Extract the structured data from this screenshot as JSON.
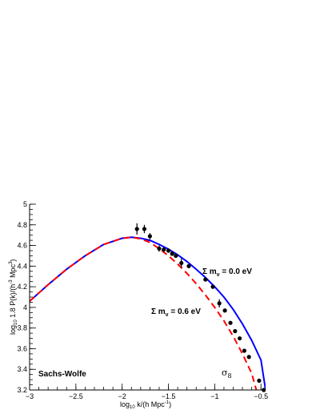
{
  "chart_data": {
    "type": "line",
    "title": "",
    "xlabel": "log10 k/(h Mpc^-1)",
    "ylabel": "log10 1.8 P(k)/(h^-3 Mpc^3)",
    "xlabel_parts": {
      "pre": "log",
      "sub": "10",
      "mid": " k/(h Mpc",
      "sup": "-1",
      "post": ")"
    },
    "ylabel_parts": {
      "pre": "log",
      "sub": "10",
      "mid": " 1.8 P(k)/(h",
      "sup1": "-3",
      "mid2": " Mpc",
      "sup2": "3",
      "post": ")"
    },
    "xlim": [
      -3,
      -0.45
    ],
    "ylim": [
      3.2,
      5.0
    ],
    "xticks": [
      -3,
      -2.5,
      -2,
      -1.5,
      -1,
      -0.5
    ],
    "xtick_labels": [
      "−3",
      "−2.5",
      "−2",
      "−1.5",
      "−1",
      "−0.5"
    ],
    "yticks": [
      3.2,
      3.4,
      3.6,
      3.8,
      4.0,
      4.2,
      4.4,
      4.6,
      4.8,
      5.0
    ],
    "ytick_labels": [
      "3.2",
      "3.4",
      "3.6",
      "3.8",
      "4",
      "4.2",
      "4.4",
      "4.6",
      "4.8",
      "5"
    ],
    "grid": false,
    "series": [
      {
        "style": "solid",
        "color": "#0000ff",
        "x": [
          -3.0,
          -2.8,
          -2.6,
          -2.4,
          -2.2,
          -2.0,
          -1.9,
          -1.8,
          -1.7,
          -1.6,
          -1.5,
          -1.4,
          -1.3,
          -1.2,
          -1.1,
          -1.0,
          -0.9,
          -0.8,
          -0.7,
          -0.6,
          -0.5,
          -0.45
        ],
        "y": [
          4.06,
          4.22,
          4.37,
          4.5,
          4.61,
          4.67,
          4.68,
          4.67,
          4.65,
          4.61,
          4.565,
          4.51,
          4.445,
          4.37,
          4.29,
          4.2,
          4.1,
          3.98,
          3.84,
          3.68,
          3.49,
          3.2
        ]
      },
      {
        "style": "dashed",
        "color": "#ff0000",
        "x": [
          -3.0,
          -2.8,
          -2.6,
          -2.4,
          -2.2,
          -2.0,
          -1.9,
          -1.8,
          -1.7,
          -1.6,
          -1.5,
          -1.4,
          -1.3,
          -1.2,
          -1.1,
          -1.0,
          -0.9,
          -0.8,
          -0.7,
          -0.6,
          -0.55
        ],
        "y": [
          4.06,
          4.22,
          4.37,
          4.5,
          4.61,
          4.67,
          4.68,
          4.665,
          4.63,
          4.57,
          4.5,
          4.42,
          4.33,
          4.23,
          4.12,
          4.0,
          3.87,
          3.72,
          3.55,
          3.36,
          3.2
        ]
      }
    ],
    "points": [
      {
        "x": -1.84,
        "y": 4.76,
        "err": 0.055
      },
      {
        "x": -1.76,
        "y": 4.76,
        "err": 0.04
      },
      {
        "x": -1.7,
        "y": 4.69,
        "err": 0.03
      },
      {
        "x": -1.6,
        "y": 4.57,
        "err": 0.03
      },
      {
        "x": -1.55,
        "y": 4.56,
        "err": 0.02
      },
      {
        "x": -1.5,
        "y": 4.55,
        "err": 0.02
      },
      {
        "x": -1.46,
        "y": 4.52,
        "err": 0.02
      },
      {
        "x": -1.42,
        "y": 4.5,
        "err": 0.02
      },
      {
        "x": -1.36,
        "y": 4.43,
        "err": 0.045
      },
      {
        "x": -1.28,
        "y": 4.4,
        "err": 0.02
      },
      {
        "x": -1.1,
        "y": 4.27,
        "err": 0.015
      },
      {
        "x": -1.02,
        "y": 4.2,
        "err": 0.015
      },
      {
        "x": -0.95,
        "y": 4.04,
        "err": 0.04
      },
      {
        "x": -0.89,
        "y": 3.97,
        "err": 0.015
      },
      {
        "x": -0.83,
        "y": 3.85,
        "err": 0.015
      },
      {
        "x": -0.78,
        "y": 3.77,
        "err": 0.015
      },
      {
        "x": -0.73,
        "y": 3.7,
        "err": 0.015
      },
      {
        "x": -0.68,
        "y": 3.58,
        "err": 0.015
      },
      {
        "x": -0.63,
        "y": 3.52,
        "err": 0.015
      },
      {
        "x": -0.52,
        "y": 3.29,
        "err": 0.015
      },
      {
        "x": -0.47,
        "y": 3.2,
        "err": 0.015
      }
    ],
    "annotations": {
      "sachs_wolfe": "Sachs-Wolfe",
      "sigma8": "σ",
      "sigma8_sub": "8",
      "mnu_0": {
        "pre": "Σ m",
        "sub": "ν",
        "post": " = 0.0 eV"
      },
      "mnu_06": {
        "pre": "Σ m",
        "sub": "ν",
        "post": " = 0.6 eV"
      }
    }
  }
}
